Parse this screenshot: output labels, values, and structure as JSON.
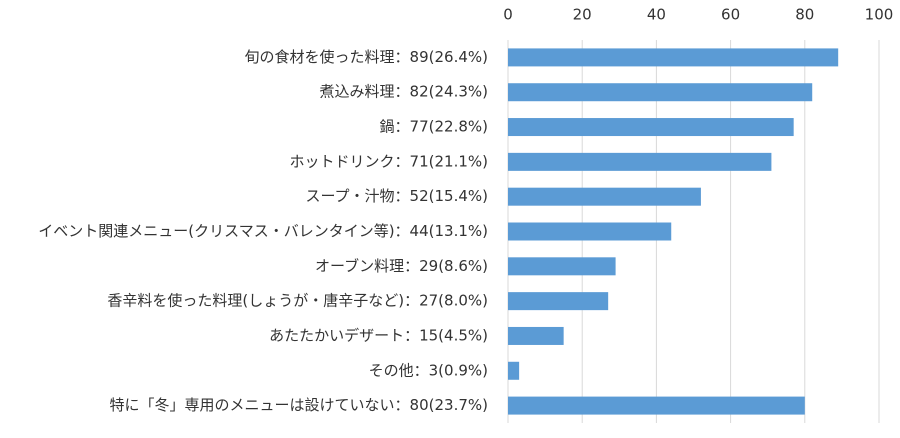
{
  "chart_data": {
    "type": "bar",
    "orientation": "horizontal",
    "categories": [
      "旬の食材を使った料理：89(26.4%)",
      "煮込み料理：82(24.3%)",
      "鍋：77(22.8%)",
      "ホットドリンク：71(21.1%)",
      "スープ・汁物：52(15.4%)",
      "イベント関連メニュー(クリスマス・バレンタイン等)：44(13.1%)",
      "オーブン料理：29(8.6%)",
      "香辛料を使った料理(しょうが・唐辛子など)：27(8.0%)",
      "あたたかいデザート：15(4.5%)",
      "その他：3(0.9%)",
      "特に「冬」専用のメニューは設けていない：80(23.7%)"
    ],
    "values": [
      89,
      82,
      77,
      71,
      52,
      44,
      29,
      27,
      15,
      3,
      80
    ],
    "color": "#5b9bd5",
    "xlim": [
      0,
      100
    ],
    "xticks": [
      0,
      20,
      40,
      60,
      80,
      100
    ],
    "grid": true
  }
}
